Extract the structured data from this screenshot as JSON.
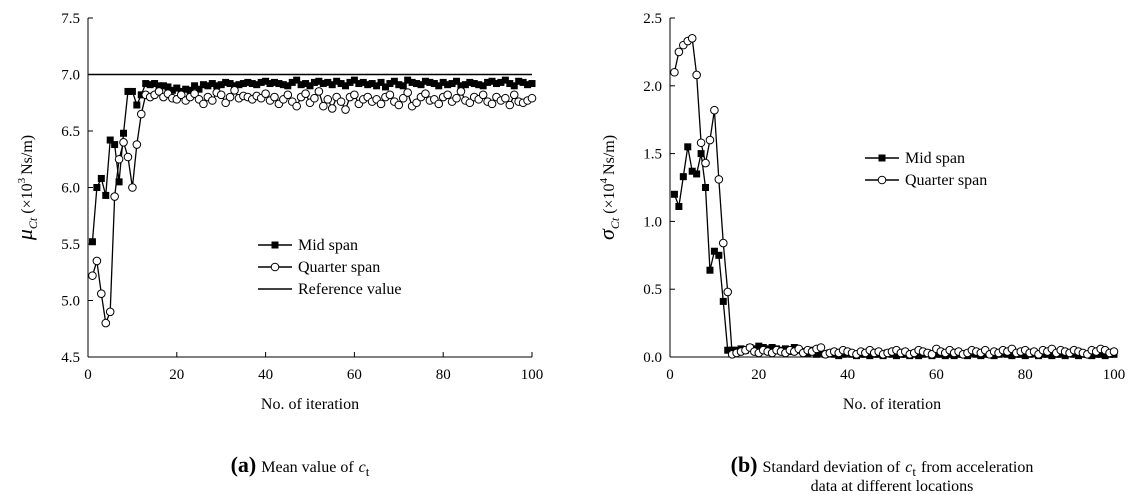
{
  "chart_data": [
    {
      "type": "line",
      "xlabel": "No. of iteration",
      "ylabel": {
        "symbol": "μ",
        "subscript": "Ct",
        "prefix": "(×10",
        "exponent": "3",
        "unit": "Ns/m)"
      },
      "caption": {
        "tag": "(a)",
        "text": "Mean value of",
        "var": "c",
        "sub": "t"
      },
      "xlim": [
        0,
        100
      ],
      "xticks": [
        0,
        20,
        40,
        60,
        80,
        100
      ],
      "ylim": [
        4.5,
        7.5
      ],
      "yticks": [
        4.5,
        {
          "value": 5,
          "label": "5.0"
        },
        5.5,
        {
          "value": 6,
          "label": "6.0"
        },
        6.5,
        {
          "value": 7,
          "label": "7.0"
        },
        7.5
      ],
      "legend": "right",
      "x": [
        1,
        2,
        3,
        4,
        5,
        6,
        7,
        8,
        9,
        10,
        11,
        12,
        13,
        14,
        15,
        16,
        17,
        18,
        19,
        20,
        21,
        22,
        23,
        24,
        25,
        26,
        27,
        28,
        29,
        30,
        31,
        32,
        33,
        34,
        35,
        36,
        37,
        38,
        39,
        40,
        41,
        42,
        43,
        44,
        45,
        46,
        47,
        48,
        49,
        50,
        51,
        52,
        53,
        54,
        55,
        56,
        57,
        58,
        59,
        60,
        61,
        62,
        63,
        64,
        65,
        66,
        67,
        68,
        69,
        70,
        71,
        72,
        73,
        74,
        75,
        76,
        77,
        78,
        79,
        80,
        81,
        82,
        83,
        84,
        85,
        86,
        87,
        88,
        89,
        90,
        91,
        92,
        93,
        94,
        95,
        96,
        97,
        98,
        99,
        100
      ],
      "series": [
        {
          "name": "Mid span",
          "marker": "square",
          "color": "#000000",
          "values": [
            5.52,
            6.0,
            6.08,
            5.93,
            6.42,
            6.38,
            6.05,
            6.48,
            6.85,
            6.85,
            6.73,
            6.82,
            6.92,
            6.91,
            6.92,
            6.9,
            6.9,
            6.89,
            6.86,
            6.88,
            6.85,
            6.87,
            6.86,
            6.9,
            6.87,
            6.91,
            6.9,
            6.92,
            6.9,
            6.91,
            6.93,
            6.92,
            6.9,
            6.91,
            6.92,
            6.93,
            6.92,
            6.91,
            6.93,
            6.94,
            6.92,
            6.93,
            6.92,
            6.91,
            6.9,
            6.93,
            6.95,
            6.91,
            6.92,
            6.9,
            6.93,
            6.94,
            6.92,
            6.93,
            6.91,
            6.94,
            6.92,
            6.9,
            6.93,
            6.95,
            6.92,
            6.93,
            6.91,
            6.92,
            6.9,
            6.93,
            6.89,
            6.92,
            6.94,
            6.91,
            6.9,
            6.95,
            6.93,
            6.92,
            6.91,
            6.94,
            6.93,
            6.92,
            6.9,
            6.93,
            6.91,
            6.92,
            6.94,
            6.9,
            6.91,
            6.93,
            6.92,
            6.91,
            6.9,
            6.93,
            6.94,
            6.92,
            6.93,
            6.95,
            6.92,
            6.9,
            6.94,
            6.93,
            6.91,
            6.92
          ]
        },
        {
          "name": "Quarter span",
          "marker": "circle",
          "color": "#000000",
          "values": [
            5.22,
            5.35,
            5.06,
            4.8,
            4.9,
            5.92,
            6.25,
            6.4,
            6.27,
            6.0,
            6.38,
            6.65,
            6.82,
            6.8,
            6.82,
            6.85,
            6.8,
            6.83,
            6.79,
            6.78,
            6.82,
            6.77,
            6.8,
            6.83,
            6.78,
            6.74,
            6.8,
            6.77,
            6.84,
            6.82,
            6.75,
            6.8,
            6.86,
            6.79,
            6.81,
            6.8,
            6.78,
            6.81,
            6.79,
            6.83,
            6.77,
            6.8,
            6.74,
            6.78,
            6.82,
            6.76,
            6.72,
            6.8,
            6.83,
            6.75,
            6.79,
            6.85,
            6.72,
            6.78,
            6.7,
            6.8,
            6.76,
            6.69,
            6.8,
            6.82,
            6.74,
            6.78,
            6.8,
            6.76,
            6.78,
            6.74,
            6.8,
            6.82,
            6.76,
            6.73,
            6.79,
            6.84,
            6.72,
            6.75,
            6.8,
            6.83,
            6.77,
            6.78,
            6.74,
            6.8,
            6.82,
            6.76,
            6.79,
            6.85,
            6.77,
            6.75,
            6.8,
            6.78,
            6.82,
            6.76,
            6.74,
            6.8,
            6.77,
            6.79,
            6.73,
            6.82,
            6.76,
            6.75,
            6.77,
            6.79
          ]
        }
      ],
      "reference": {
        "name": "Reference value",
        "value": 7,
        "color": "#000000"
      }
    },
    {
      "type": "line",
      "xlabel": "No. of iteration",
      "ylabel": {
        "symbol": "σ",
        "subscript": "Ct",
        "prefix": "(×10",
        "exponent": "4",
        "unit": "Ns/m)"
      },
      "caption": {
        "tag": "(b)",
        "text": "Standard deviation of",
        "var": "c",
        "sub": "t",
        "text2": "from acceleration",
        "line2": "data at different locations"
      },
      "xlim": [
        0,
        100
      ],
      "xticks": [
        0,
        20,
        40,
        60,
        80,
        100
      ],
      "ylim": [
        0,
        2.5
      ],
      "yticks": [
        {
          "value": 0,
          "label": "0.0"
        },
        0.5,
        {
          "value": 1,
          "label": "1.0"
        },
        1.5,
        {
          "value": 2,
          "label": "2.0"
        },
        2.5
      ],
      "legend": "upper center",
      "x": [
        1,
        2,
        3,
        4,
        5,
        6,
        7,
        8,
        9,
        10,
        11,
        12,
        13,
        14,
        15,
        16,
        17,
        18,
        19,
        20,
        21,
        22,
        23,
        24,
        25,
        26,
        27,
        28,
        29,
        30,
        31,
        32,
        33,
        34,
        35,
        36,
        37,
        38,
        39,
        40,
        41,
        42,
        43,
        44,
        45,
        46,
        47,
        48,
        49,
        50,
        51,
        52,
        53,
        54,
        55,
        56,
        57,
        58,
        59,
        60,
        61,
        62,
        63,
        64,
        65,
        66,
        67,
        68,
        69,
        70,
        71,
        72,
        73,
        74,
        75,
        76,
        77,
        78,
        79,
        80,
        81,
        82,
        83,
        84,
        85,
        86,
        87,
        88,
        89,
        90,
        91,
        92,
        93,
        94,
        95,
        96,
        97,
        98,
        99,
        100
      ],
      "series": [
        {
          "name": "Mid span",
          "marker": "square",
          "color": "#000000",
          "values": [
            1.2,
            1.11,
            1.33,
            1.55,
            1.37,
            1.35,
            1.5,
            1.25,
            0.64,
            0.78,
            0.75,
            0.41,
            0.05,
            0.05,
            0.05,
            0.06,
            0.05,
            0.07,
            0.06,
            0.08,
            0.07,
            0.06,
            0.07,
            0.06,
            0.05,
            0.06,
            0.04,
            0.07,
            0.05,
            0.04,
            0.03,
            0.05,
            0.02,
            0.03,
            0.02,
            0.03,
            0.02,
            0.01,
            0.02,
            0.03,
            0.02,
            0.01,
            0.02,
            0.02,
            0.01,
            0.02,
            0.02,
            0.01,
            0.03,
            0.02,
            0.01,
            0.02,
            0.02,
            0.01,
            0.02,
            0.01,
            0.02,
            0.03,
            0.01,
            0.02,
            0.02,
            0.01,
            0.02,
            0.01,
            0.02,
            0.02,
            0.01,
            0.03,
            0.02,
            0.01,
            0.02,
            0.02,
            0.01,
            0.02,
            0.03,
            0.02,
            0.01,
            0.02,
            0.02,
            0.01,
            0.02,
            0.03,
            0.01,
            0.02,
            0.02,
            0.01,
            0.02,
            0.02,
            0.01,
            0.03,
            0.02,
            0.01,
            0.02,
            0.02,
            0.01,
            0.02,
            0.02,
            0.01,
            0.02,
            0.02
          ]
        },
        {
          "name": "Quarter span",
          "marker": "circle",
          "color": "#000000",
          "values": [
            2.1,
            2.25,
            2.3,
            2.33,
            2.35,
            2.08,
            1.58,
            1.43,
            1.6,
            1.82,
            1.31,
            0.84,
            0.48,
            0.02,
            0.03,
            0.04,
            0.05,
            0.07,
            0.04,
            0.03,
            0.05,
            0.04,
            0.03,
            0.05,
            0.04,
            0.03,
            0.05,
            0.04,
            0.06,
            0.03,
            0.05,
            0.04,
            0.06,
            0.07,
            0.02,
            0.03,
            0.04,
            0.03,
            0.05,
            0.04,
            0.03,
            0.02,
            0.04,
            0.03,
            0.05,
            0.03,
            0.04,
            0.02,
            0.03,
            0.04,
            0.05,
            0.03,
            0.04,
            0.02,
            0.03,
            0.05,
            0.04,
            0.03,
            0.02,
            0.06,
            0.04,
            0.03,
            0.05,
            0.03,
            0.04,
            0.02,
            0.03,
            0.05,
            0.04,
            0.03,
            0.05,
            0.02,
            0.04,
            0.03,
            0.05,
            0.04,
            0.06,
            0.03,
            0.04,
            0.05,
            0.03,
            0.04,
            0.02,
            0.05,
            0.04,
            0.06,
            0.03,
            0.05,
            0.04,
            0.03,
            0.05,
            0.04,
            0.03,
            0.02,
            0.05,
            0.04,
            0.06,
            0.05,
            0.03,
            0.04
          ]
        }
      ]
    }
  ]
}
